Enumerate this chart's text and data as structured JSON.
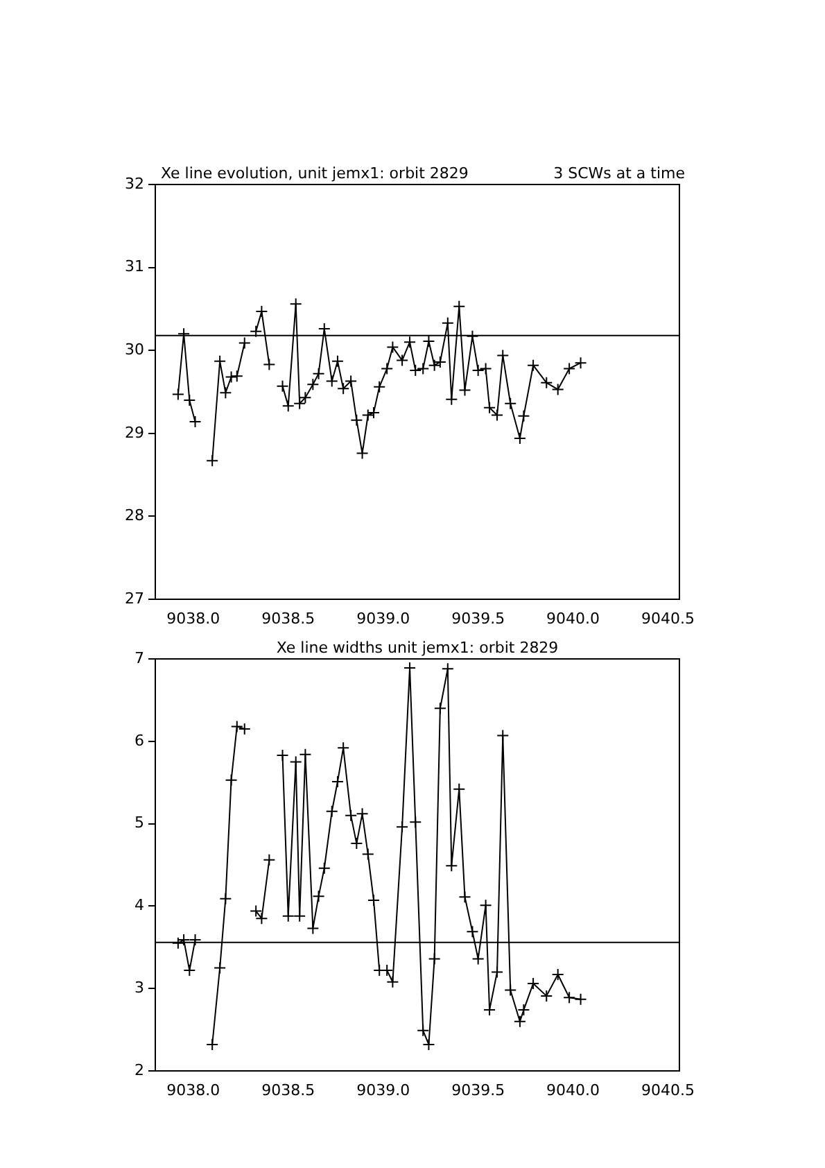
{
  "chart_data": [
    {
      "type": "line",
      "title": "Xe line evolution, unit jemx1: orbit 2829",
      "subtitle": "3 SCWs at a time",
      "marker": "cross",
      "line_style": "solid",
      "x": [
        9037.92,
        9037.95,
        9037.98,
        9038.01,
        9038.05,
        9038.1,
        9038.14,
        9038.17,
        9038.2,
        9038.23,
        9038.27,
        9038.3,
        9038.33,
        9038.36,
        9038.4,
        9038.43,
        9038.47,
        9038.5,
        9038.54,
        9038.56,
        9038.59,
        9038.63,
        9038.66,
        9038.69,
        9038.73,
        9038.76,
        9038.79,
        9038.83,
        9038.86,
        9038.89,
        9038.92,
        9038.95,
        9038.98,
        9039.02,
        9039.05,
        9039.1,
        9039.14,
        9039.17,
        9039.21,
        9039.24,
        9039.27,
        9039.3,
        9039.34,
        9039.36,
        9039.4,
        9039.43,
        9039.47,
        9039.5,
        9039.54,
        9039.56,
        9039.6,
        9039.63,
        9039.67,
        9039.72,
        9039.74,
        9039.79,
        9039.86,
        9039.92,
        9039.98,
        9040.04
      ],
      "series": [
        {
          "color": "#000000",
          "values": [
            29.47,
            30.2,
            29.4,
            29.14,
            null,
            28.67,
            29.87,
            29.49,
            29.68,
            29.69,
            30.09,
            null,
            30.23,
            30.47,
            29.83,
            null,
            29.57,
            29.33,
            30.56,
            29.36,
            29.43,
            29.59,
            29.72,
            30.26,
            29.63,
            29.87,
            29.54,
            29.63,
            29.16,
            28.76,
            29.22,
            29.25,
            29.56,
            29.78,
            30.04,
            29.88,
            30.1,
            29.76,
            29.78,
            30.11,
            29.82,
            29.86,
            30.33,
            29.41,
            30.53,
            29.52,
            30.17,
            29.76,
            29.78,
            29.31,
            29.22,
            29.94,
            29.36,
            28.94,
            29.21,
            29.82,
            29.61,
            29.53,
            29.78,
            29.85
          ]
        }
      ],
      "xlim": [
        9037.8,
        9040.56
      ],
      "xticks": [
        {
          "value": 9038,
          "label": "9038.0"
        },
        {
          "value": 9038.5,
          "label": "9038.5"
        },
        {
          "value": 9039,
          "label": "9039.0"
        },
        {
          "value": 9039.5,
          "label": "9039.5"
        },
        {
          "value": 9040,
          "label": "9040.0"
        },
        {
          "value": 9040.5,
          "label": "9040.5"
        }
      ],
      "ylim": [
        27,
        32
      ],
      "yticks": [
        27,
        28,
        29,
        30,
        31,
        32
      ],
      "ref_lines": [
        {
          "axis": "y",
          "value": 30.18,
          "color": "#000000"
        }
      ]
    },
    {
      "type": "line",
      "title": "Xe line widths unit jemx1: orbit 2829",
      "marker": "cross",
      "line_style": "solid",
      "x": [
        9037.92,
        9037.95,
        9037.98,
        9038.01,
        9038.05,
        9038.1,
        9038.14,
        9038.17,
        9038.2,
        9038.23,
        9038.27,
        9038.3,
        9038.33,
        9038.36,
        9038.4,
        9038.43,
        9038.47,
        9038.5,
        9038.54,
        9038.56,
        9038.59,
        9038.63,
        9038.66,
        9038.69,
        9038.73,
        9038.76,
        9038.79,
        9038.83,
        9038.86,
        9038.89,
        9038.92,
        9038.95,
        9038.98,
        9039.02,
        9039.05,
        9039.1,
        9039.14,
        9039.17,
        9039.21,
        9039.24,
        9039.27,
        9039.3,
        9039.34,
        9039.36,
        9039.4,
        9039.43,
        9039.47,
        9039.5,
        9039.54,
        9039.56,
        9039.6,
        9039.63,
        9039.67,
        9039.72,
        9039.74,
        9039.79,
        9039.86,
        9039.92,
        9039.98,
        9040.04
      ],
      "series": [
        {
          "color": "#000000",
          "values": [
            3.55,
            3.59,
            3.22,
            3.59,
            null,
            2.32,
            3.25,
            4.09,
            5.53,
            6.18,
            6.15,
            null,
            3.94,
            3.85,
            4.56,
            null,
            5.83,
            3.88,
            5.75,
            3.88,
            5.84,
            3.73,
            4.12,
            4.46,
            5.15,
            5.51,
            5.92,
            5.1,
            4.76,
            5.12,
            4.63,
            4.07,
            3.22,
            3.22,
            3.08,
            4.96,
            6.89,
            5.02,
            2.49,
            2.32,
            3.36,
            6.4,
            6.88,
            4.49,
            5.42,
            4.11,
            3.69,
            3.36,
            4.01,
            2.74,
            3.2,
            6.07,
            2.98,
            2.6,
            2.74,
            3.06,
            2.91,
            3.17,
            2.89,
            2.87
          ]
        }
      ],
      "xlim": [
        9037.8,
        9040.56
      ],
      "xticks": [
        {
          "value": 9038,
          "label": "9038.0"
        },
        {
          "value": 9038.5,
          "label": "9038.5"
        },
        {
          "value": 9039,
          "label": "9039.0"
        },
        {
          "value": 9039.5,
          "label": "9039.5"
        },
        {
          "value": 9040,
          "label": "9040.0"
        },
        {
          "value": 9040.5,
          "label": "9040.5"
        }
      ],
      "ylim": [
        2,
        7
      ],
      "yticks": [
        2,
        3,
        4,
        5,
        6,
        7
      ],
      "ref_lines": [
        {
          "axis": "y",
          "value": 3.56,
          "color": "#000000"
        }
      ]
    }
  ]
}
